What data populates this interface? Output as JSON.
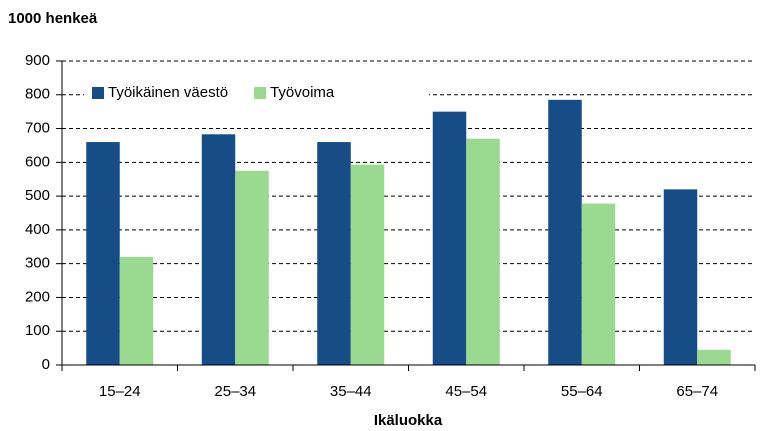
{
  "chart_data": {
    "type": "bar",
    "y_label": "1000 henkeä",
    "x_label": "Ikäluokka",
    "categories": [
      "15–24",
      "25–34",
      "35–44",
      "45–54",
      "55–64",
      "65–74"
    ],
    "series": [
      {
        "name": "Työikäinen väestö",
        "color": "#164d87",
        "values": [
          660,
          683,
          660,
          750,
          785,
          520
        ]
      },
      {
        "name": "Työvoima",
        "color": "#99d990",
        "values": [
          320,
          575,
          593,
          670,
          478,
          45
        ]
      }
    ],
    "ylim": [
      0,
      900
    ],
    "yticks": [
      0,
      100,
      200,
      300,
      400,
      500,
      600,
      700,
      800,
      900
    ],
    "grid": true,
    "legend": "top-left"
  }
}
